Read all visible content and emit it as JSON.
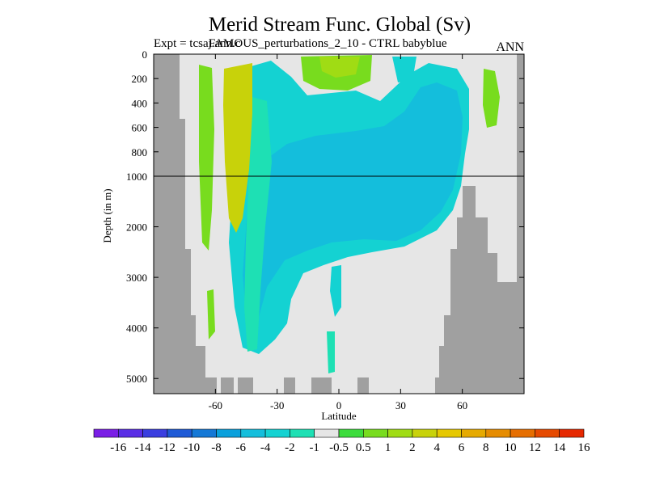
{
  "title": "Merid Stream Func. Global (Sv)",
  "subtitle_left": "Expt = tcsaj.ann.c",
  "subtitle_overlap": "FAMOUS_perturbations_2_10 - CTRL babyblue",
  "season": "ANN",
  "xlabel": "Latitude",
  "ylabel": "Depth (in m)",
  "colors": {
    "land": "#a0a0a0",
    "background": "#e6e6e6",
    "divider": "#000000"
  },
  "chart_data": {
    "type": "heatmap",
    "x_ticks": [
      {
        "value": -60,
        "label": "-60"
      },
      {
        "value": -30,
        "label": "-30"
      },
      {
        "value": 0,
        "label": "0"
      },
      {
        "value": 30,
        "label": "30"
      },
      {
        "value": 60,
        "label": "60"
      }
    ],
    "xlim": [
      -90,
      90
    ],
    "y_upper_ticks": [
      {
        "value": 0,
        "label": "0"
      },
      {
        "value": 200,
        "label": "200"
      },
      {
        "value": 400,
        "label": "400"
      },
      {
        "value": 600,
        "label": "600"
      },
      {
        "value": 800,
        "label": "800"
      },
      {
        "value": 1000,
        "label": "1000"
      }
    ],
    "y_lower_ticks": [
      {
        "value": 2000,
        "label": "2000"
      },
      {
        "value": 3000,
        "label": "3000"
      },
      {
        "value": 4000,
        "label": "4000"
      },
      {
        "value": 5000,
        "label": "5000"
      }
    ],
    "ylim": [
      0,
      5300
    ],
    "y_axis_break_depth": 1000,
    "colorbar": {
      "labels": [
        "-16",
        "-14",
        "-12",
        "-10",
        "-8",
        "-6",
        "-4",
        "-2",
        "-1",
        "-0.5",
        "0.5",
        "1",
        "2",
        "4",
        "6",
        "8",
        "10",
        "12",
        "14",
        "16"
      ],
      "colors": [
        "#7a1ee6",
        "#5a2ee6",
        "#3a3ee0",
        "#1e5ad6",
        "#1478d6",
        "#0aa0dc",
        "#14bedc",
        "#14d2d2",
        "#1ee0b4",
        "#e6e6e6",
        "#3cdc3c",
        "#78dc1e",
        "#a0dc14",
        "#c8d20a",
        "#e6c800",
        "#e6aa00",
        "#e68c00",
        "#e66e00",
        "#e64a00",
        "#e62800"
      ]
    },
    "fields": [
      {
        "level": "-2",
        "region": "broad cell from about 40S to 60N, surface to about 4200 m"
      },
      {
        "level": "-4",
        "region": "core near 50S to 60N, 100 m to 3200 m"
      },
      {
        "level": "-1",
        "region": "band near 50S to 35S, 200 m to 4300 m"
      },
      {
        "level": "2",
        "region": "Southern Ocean column near 58S to 50S, 0 to 2000 m"
      },
      {
        "level": "1",
        "region": "upper ocean near 10S to 15N, 0 to 150 m"
      },
      {
        "level": "1",
        "region": "northern patch near 70N to 75N, 100 to 700 m"
      }
    ]
  }
}
